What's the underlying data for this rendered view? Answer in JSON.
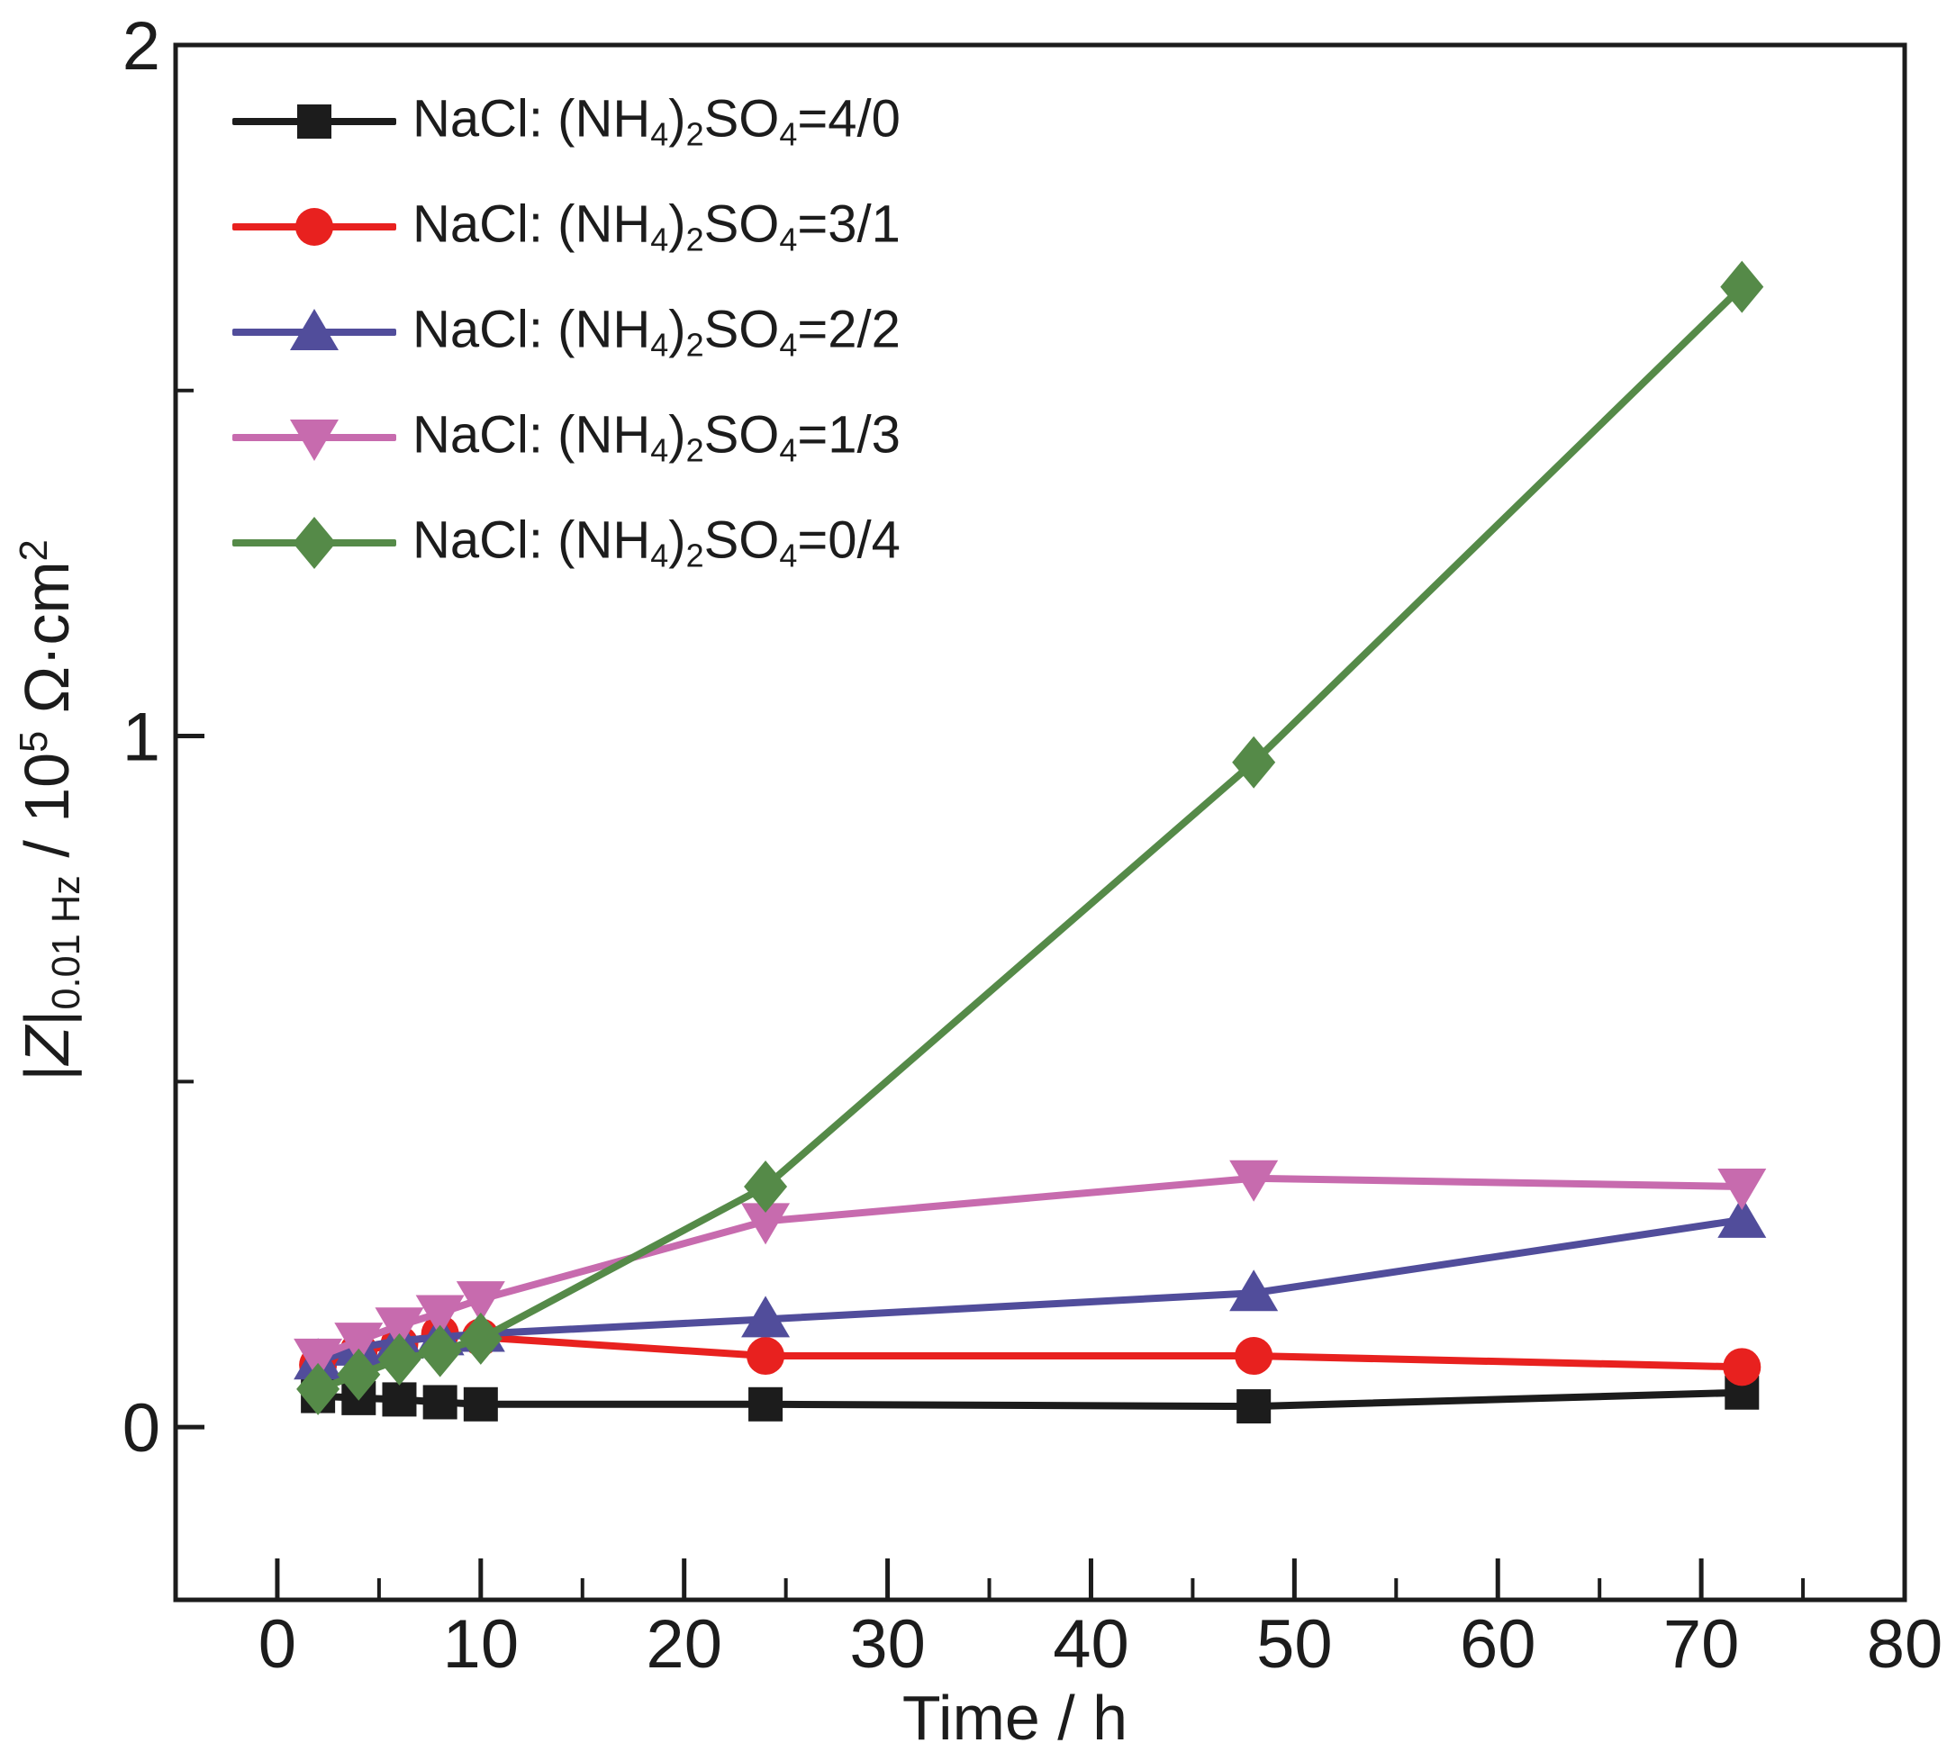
{
  "figure": {
    "background": "#ffffff",
    "axis_color": "#1c1c1c"
  },
  "x_axis": {
    "label": "Time / h",
    "tick_labels": [
      "0",
      "10",
      "20",
      "30",
      "40",
      "50",
      "60",
      "70",
      "80"
    ]
  },
  "y_axis": {
    "label_plain": "|Z| 0.01 Hz / 10^5 Ohm·cm^2",
    "label_segments": [
      {
        "t": "|"
      },
      {
        "t": "Z",
        "i": true
      },
      {
        "t": "|"
      },
      {
        "t": "0.01 Hz",
        "s": "sub"
      },
      {
        "t": " / 10"
      },
      {
        "t": "5",
        "s": "sup"
      },
      {
        "t": " Ω·cm"
      },
      {
        "t": "2",
        "s": "sup"
      }
    ],
    "tick_labels": [
      "0",
      "1",
      "2"
    ]
  },
  "legend": {
    "position": "top-left",
    "items": [
      {
        "marker": "square",
        "color": "#1c1c1c",
        "label_plain": "NaCl: (NH4)2SO4=4/0",
        "label_segments": [
          {
            "t": "NaCl: (NH"
          },
          {
            "t": "4",
            "s": "sub"
          },
          {
            "t": ")"
          },
          {
            "t": "2",
            "s": "sub"
          },
          {
            "t": "SO"
          },
          {
            "t": "4",
            "s": "sub"
          },
          {
            "t": "=4/0"
          }
        ]
      },
      {
        "marker": "circle",
        "color": "#e8211f",
        "label_plain": "NaCl: (NH4)2SO4=3/1",
        "label_segments": [
          {
            "t": "NaCl: (NH"
          },
          {
            "t": "4",
            "s": "sub"
          },
          {
            "t": ")"
          },
          {
            "t": "2",
            "s": "sub"
          },
          {
            "t": "SO"
          },
          {
            "t": "4",
            "s": "sub"
          },
          {
            "t": "=3/1"
          }
        ]
      },
      {
        "marker": "triangle-up",
        "color": "#514d9b",
        "label_plain": "NaCl: (NH4)2SO4=2/2",
        "label_segments": [
          {
            "t": "NaCl: (NH"
          },
          {
            "t": "4",
            "s": "sub"
          },
          {
            "t": ")"
          },
          {
            "t": "2",
            "s": "sub"
          },
          {
            "t": "SO"
          },
          {
            "t": "4",
            "s": "sub"
          },
          {
            "t": "=2/2"
          }
        ]
      },
      {
        "marker": "triangle-down",
        "color": "#c76bae",
        "label_plain": "NaCl: (NH4)2SO4=1/3",
        "label_segments": [
          {
            "t": "NaCl: (NH"
          },
          {
            "t": "4",
            "s": "sub"
          },
          {
            "t": ")"
          },
          {
            "t": "2",
            "s": "sub"
          },
          {
            "t": "SO"
          },
          {
            "t": "4",
            "s": "sub"
          },
          {
            "t": "=1/3"
          }
        ]
      },
      {
        "marker": "diamond",
        "color": "#558a48",
        "label_plain": "NaCl: (NH4)2SO4=0/4",
        "label_segments": [
          {
            "t": "NaCl: (NH"
          },
          {
            "t": "4",
            "s": "sub"
          },
          {
            "t": ")"
          },
          {
            "t": "2",
            "s": "sub"
          },
          {
            "t": "SO"
          },
          {
            "t": "4",
            "s": "sub"
          },
          {
            "t": "=0/4"
          }
        ]
      }
    ]
  },
  "chart_data": {
    "type": "line",
    "title": "",
    "xlabel": "Time / h",
    "ylabel": "|Z| at 0.01 Hz / 10^5 Ω·cm^2",
    "x": [
      2,
      4,
      6,
      8,
      10,
      24,
      48,
      72
    ],
    "series": [
      {
        "name": "NaCl: (NH4)2SO4=4/0",
        "color": "#1c1c1c",
        "marker": "square",
        "values": [
          0.045,
          0.042,
          0.04,
          0.036,
          0.033,
          0.033,
          0.03,
          0.05
        ]
      },
      {
        "name": "NaCl: (NH4)2SO4=3/1",
        "color": "#e8211f",
        "marker": "circle",
        "values": [
          0.09,
          0.11,
          0.12,
          0.135,
          0.13,
          0.103,
          0.103,
          0.087
        ]
      },
      {
        "name": "NaCl: (NH4)2SO4=2/2",
        "color": "#514d9b",
        "marker": "triangle-up",
        "values": [
          0.095,
          0.115,
          0.125,
          0.13,
          0.135,
          0.156,
          0.194,
          0.3
        ]
      },
      {
        "name": "NaCl: (NH4)2SO4=1/3",
        "color": "#c76bae",
        "marker": "triangle-down",
        "values": [
          0.102,
          0.125,
          0.147,
          0.165,
          0.185,
          0.298,
          0.36,
          0.348
        ]
      },
      {
        "name": "NaCl: (NH4)2SO4=0/4",
        "color": "#558a48",
        "marker": "diamond",
        "values": [
          0.055,
          0.076,
          0.098,
          0.11,
          0.128,
          0.348,
          0.962,
          1.65
        ]
      }
    ],
    "xlim": [
      -5,
      80
    ],
    "ylim": [
      -0.25,
      2.0
    ],
    "x_major_ticks": [
      0,
      10,
      20,
      30,
      40,
      50,
      60,
      70,
      80
    ],
    "x_minor_ticks": [
      5,
      15,
      25,
      35,
      45,
      55,
      65,
      75
    ],
    "y_major_ticks": [
      0,
      1,
      2
    ],
    "y_minor_ticks": [
      0.5,
      1.5
    ],
    "grid": false,
    "legend_position": "top-left"
  }
}
